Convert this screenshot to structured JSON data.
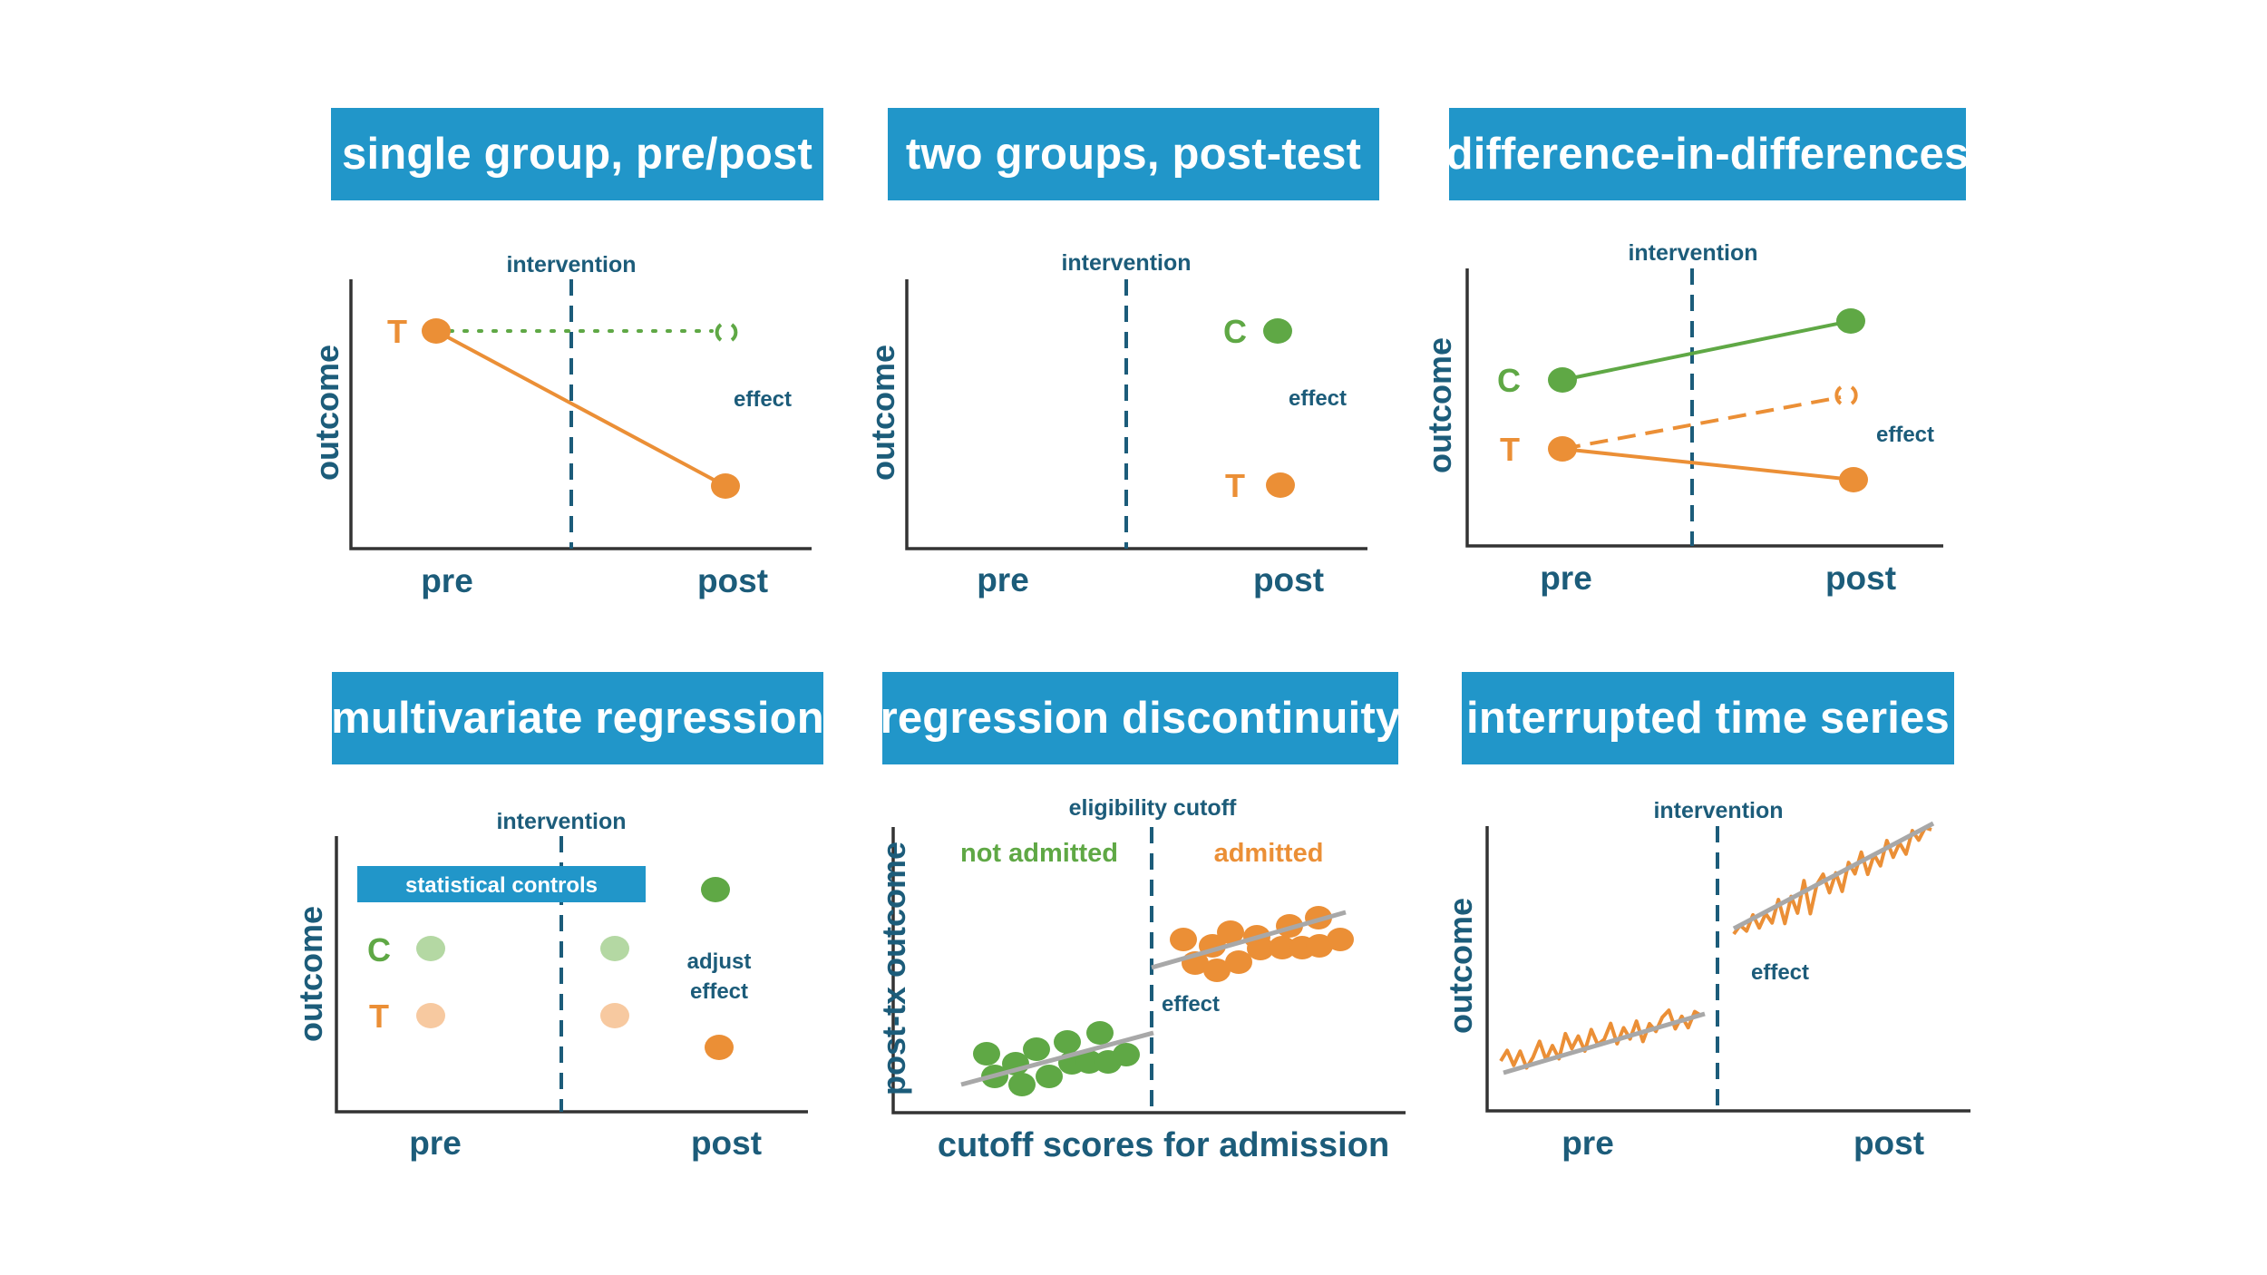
{
  "panels": [
    {
      "title": "single group, pre/post",
      "y_label": "outcome",
      "x_labels": [
        "pre",
        "post"
      ],
      "intervention": "intervention",
      "effect": "effect",
      "group_t": "T"
    },
    {
      "title": "two groups, post-test",
      "y_label": "outcome",
      "x_labels": [
        "pre",
        "post"
      ],
      "intervention": "intervention",
      "effect": "effect",
      "group_c": "C",
      "group_t": "T"
    },
    {
      "title": "difference-in-differences",
      "y_label": "outcome",
      "x_labels": [
        "pre",
        "post"
      ],
      "intervention": "intervention",
      "effect": "effect",
      "group_c": "C",
      "group_t": "T"
    },
    {
      "title": "multivariate regression",
      "y_label": "outcome",
      "x_labels": [
        "pre",
        "post"
      ],
      "intervention": "intervention",
      "controls": "statistical controls",
      "adjust_effect": [
        "adjust",
        "effect"
      ],
      "group_c": "C",
      "group_t": "T"
    },
    {
      "title": "regression discontinuity",
      "y_label": "post-tx outcome",
      "x_label": "cutoff scores for admission",
      "cutoff": "eligibility cutoff",
      "left_group": "not admitted",
      "right_group": "admitted",
      "effect": "effect"
    },
    {
      "title": "interrupted time series",
      "y_label": "outcome",
      "x_labels": [
        "pre",
        "post"
      ],
      "intervention": "intervention",
      "effect": "effect"
    }
  ],
  "colors": {
    "banner": "#2196c9",
    "label": "#1c5c7a",
    "treatment": "#eb8f36",
    "control": "#5fa845",
    "treatment_light": "#f7c9a0",
    "control_light": "#b4d8a3",
    "fit_line": "#a8a8a8"
  }
}
